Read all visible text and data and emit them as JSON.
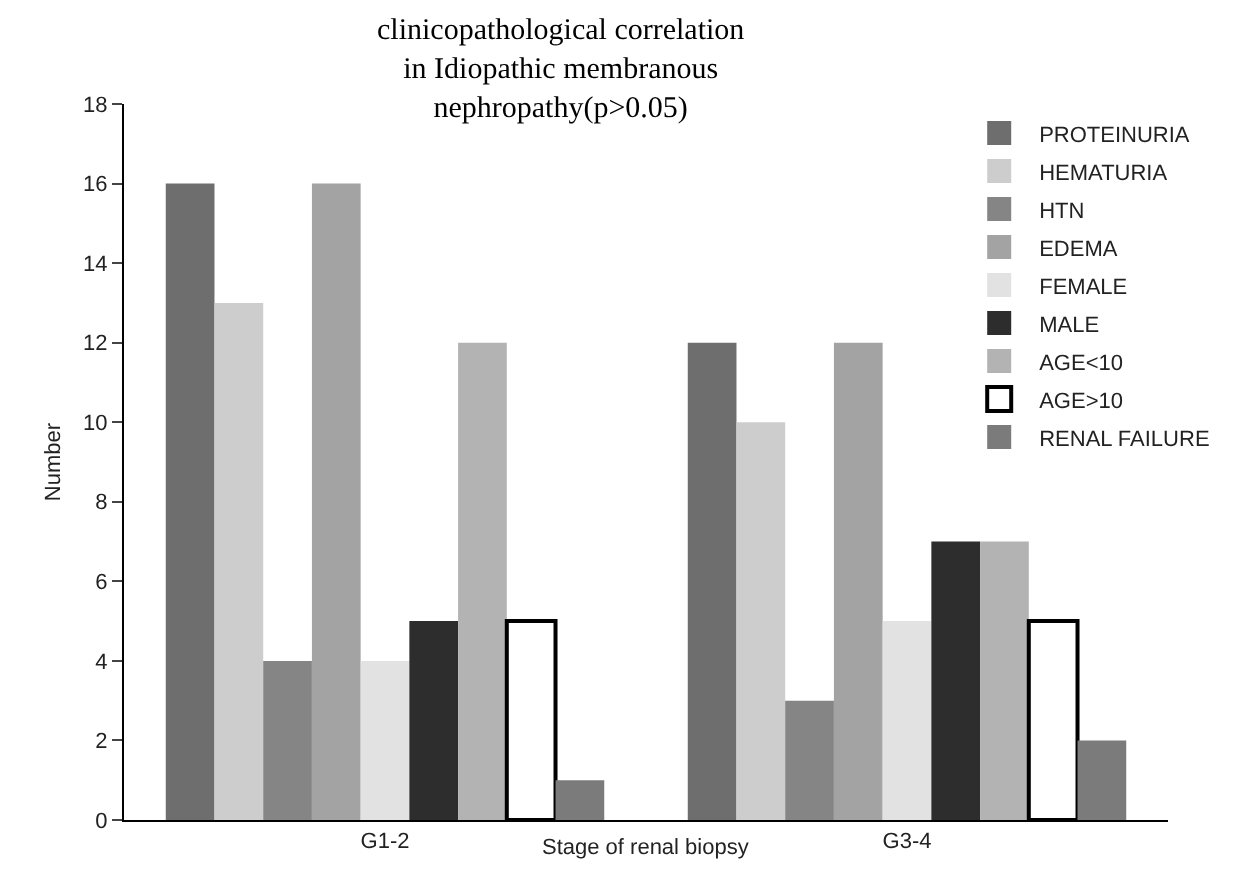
{
  "chart_data": {
    "type": "bar",
    "title": "clinicopathological correlation\nin Idiopathic membranous\nnephropathy(p>0.05)",
    "xlabel": "Stage of renal biopsy",
    "ylabel": "Number",
    "categories": [
      "G1-2",
      "G3-4"
    ],
    "series": [
      {
        "name": "PROTEINURIA",
        "color": "#6e6e6e",
        "values": [
          16,
          12
        ]
      },
      {
        "name": "HEMATURIA",
        "color": "#cdcdcd",
        "values": [
          13,
          10
        ]
      },
      {
        "name": "HTN",
        "color": "#858585",
        "values": [
          4,
          3
        ]
      },
      {
        "name": "EDEMA",
        "color": "#a3a3a3",
        "values": [
          16,
          12
        ]
      },
      {
        "name": "FEMALE",
        "color": "#e2e2e2",
        "values": [
          4,
          5
        ]
      },
      {
        "name": "MALE",
        "color": "#2d2d2d",
        "values": [
          5,
          7
        ]
      },
      {
        "name": "AGE<10",
        "color": "#b3b3b3",
        "values": [
          12,
          7
        ]
      },
      {
        "name": "AGE>10",
        "color": "#ffffff",
        "values": [
          5,
          5
        ]
      },
      {
        "name": "RENAL FAILURE",
        "color": "#7b7b7b",
        "values": [
          1,
          2
        ]
      }
    ],
    "ylim": [
      0,
      18
    ],
    "yticks": [
      0,
      2,
      4,
      6,
      8,
      10,
      12,
      14,
      16,
      18
    ],
    "grid": false,
    "legend": "top right"
  }
}
